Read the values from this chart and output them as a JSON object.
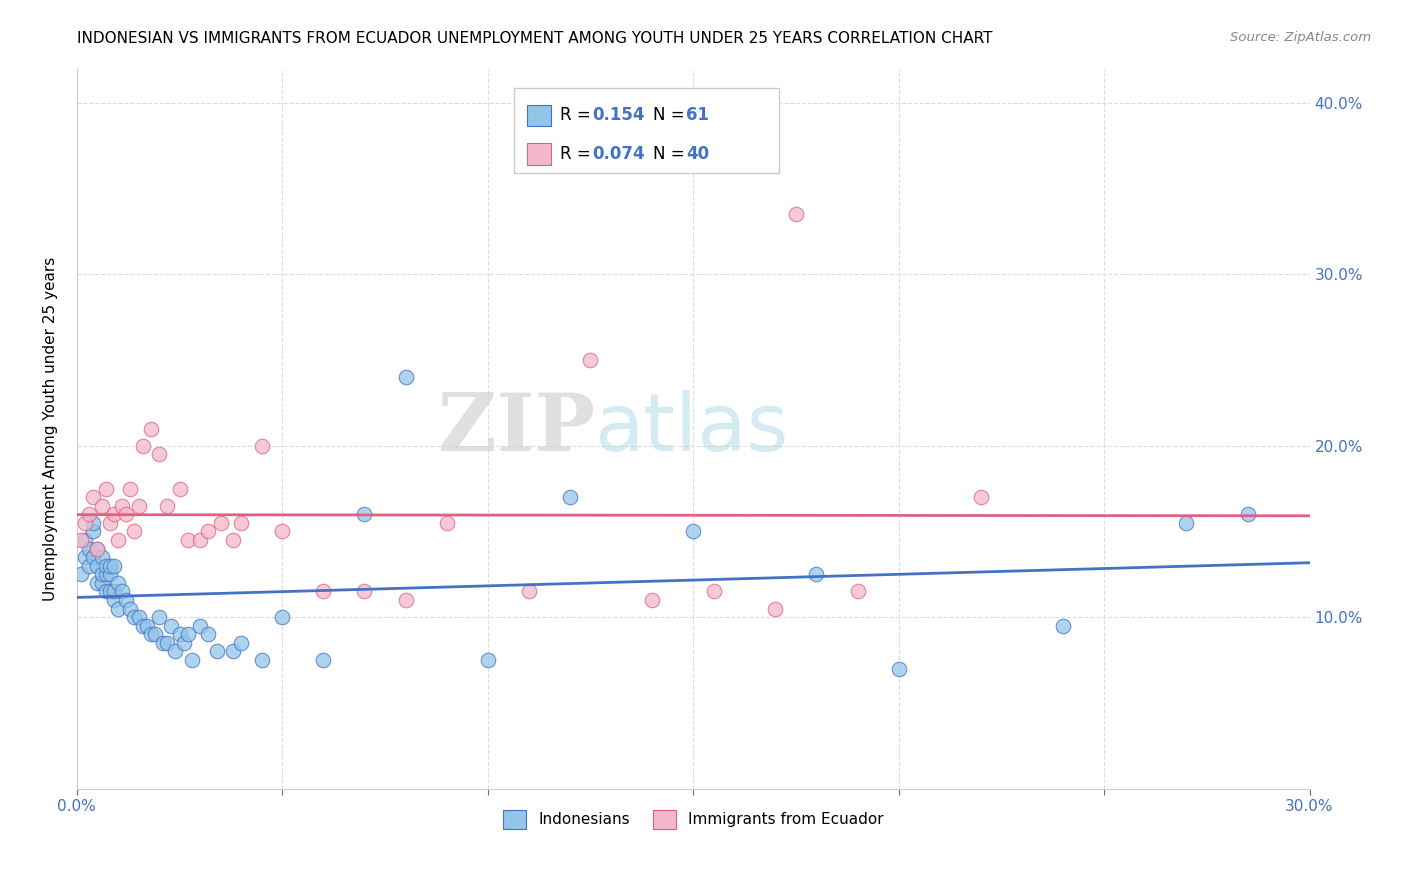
{
  "title": "INDONESIAN VS IMMIGRANTS FROM ECUADOR UNEMPLOYMENT AMONG YOUTH UNDER 25 YEARS CORRELATION CHART",
  "source": "Source: ZipAtlas.com",
  "ylabel": "Unemployment Among Youth under 25 years",
  "xlim": [
    0.0,
    0.3
  ],
  "ylim": [
    0.0,
    0.42
  ],
  "R_indonesian": 0.154,
  "N_indonesian": 61,
  "R_ecuador": 0.074,
  "N_ecuador": 40,
  "color_indonesian": "#92C5E8",
  "color_ecuador": "#F4B8CC",
  "color_line_indonesian": "#4472C4",
  "color_line_ecuador": "#E06080",
  "watermark_zip": "ZIP",
  "watermark_atlas": "atlas",
  "legend_labels": [
    "Indonesians",
    "Immigrants from Ecuador"
  ],
  "indonesian_x": [
    0.001,
    0.002,
    0.002,
    0.003,
    0.003,
    0.004,
    0.004,
    0.004,
    0.005,
    0.005,
    0.005,
    0.006,
    0.006,
    0.006,
    0.007,
    0.007,
    0.007,
    0.008,
    0.008,
    0.008,
    0.009,
    0.009,
    0.009,
    0.01,
    0.01,
    0.011,
    0.012,
    0.013,
    0.014,
    0.015,
    0.016,
    0.017,
    0.018,
    0.019,
    0.02,
    0.021,
    0.022,
    0.023,
    0.024,
    0.025,
    0.026,
    0.027,
    0.028,
    0.03,
    0.032,
    0.034,
    0.038,
    0.04,
    0.045,
    0.05,
    0.06,
    0.07,
    0.08,
    0.1,
    0.12,
    0.15,
    0.18,
    0.2,
    0.24,
    0.27,
    0.285
  ],
  "indonesian_y": [
    0.125,
    0.135,
    0.145,
    0.13,
    0.14,
    0.135,
    0.15,
    0.155,
    0.12,
    0.13,
    0.14,
    0.12,
    0.125,
    0.135,
    0.115,
    0.125,
    0.13,
    0.115,
    0.125,
    0.13,
    0.11,
    0.115,
    0.13,
    0.105,
    0.12,
    0.115,
    0.11,
    0.105,
    0.1,
    0.1,
    0.095,
    0.095,
    0.09,
    0.09,
    0.1,
    0.085,
    0.085,
    0.095,
    0.08,
    0.09,
    0.085,
    0.09,
    0.075,
    0.095,
    0.09,
    0.08,
    0.08,
    0.085,
    0.075,
    0.1,
    0.075,
    0.16,
    0.24,
    0.075,
    0.17,
    0.15,
    0.125,
    0.07,
    0.095,
    0.155,
    0.16
  ],
  "ecuador_x": [
    0.001,
    0.002,
    0.003,
    0.004,
    0.005,
    0.006,
    0.007,
    0.008,
    0.009,
    0.01,
    0.011,
    0.012,
    0.013,
    0.014,
    0.015,
    0.016,
    0.018,
    0.02,
    0.022,
    0.025,
    0.027,
    0.03,
    0.032,
    0.035,
    0.038,
    0.04,
    0.045,
    0.05,
    0.06,
    0.07,
    0.08,
    0.09,
    0.11,
    0.125,
    0.14,
    0.155,
    0.17,
    0.175,
    0.19,
    0.22
  ],
  "ecuador_y": [
    0.145,
    0.155,
    0.16,
    0.17,
    0.14,
    0.165,
    0.175,
    0.155,
    0.16,
    0.145,
    0.165,
    0.16,
    0.175,
    0.15,
    0.165,
    0.2,
    0.21,
    0.195,
    0.165,
    0.175,
    0.145,
    0.145,
    0.15,
    0.155,
    0.145,
    0.155,
    0.2,
    0.15,
    0.115,
    0.115,
    0.11,
    0.155,
    0.115,
    0.25,
    0.11,
    0.115,
    0.105,
    0.335,
    0.115,
    0.17
  ]
}
